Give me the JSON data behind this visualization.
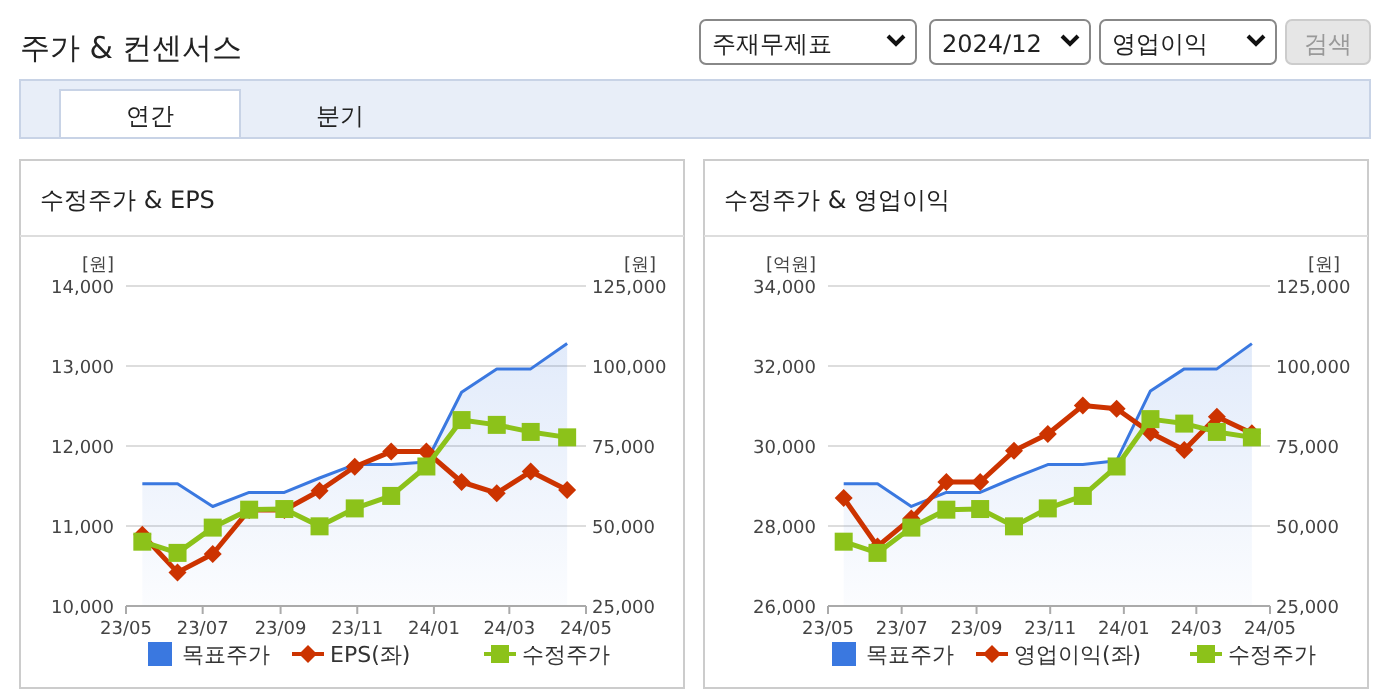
{
  "chart_data": [
    {
      "type": "other",
      "title": "주가 & 컨센서스",
      "annotations": [
        "주재무제표",
        "2024/12",
        "영업이익",
        "검색",
        "연간",
        "분기"
      ]
    },
    {
      "type": "line",
      "title": "수정주가 & EPS",
      "ylabel": "[원]",
      "y2label": "[원]",
      "x": [
        "2023-05-14",
        "2023-06-11",
        "2023-07-09",
        "2023-08-07",
        "2023-09-04",
        "2023-10-02",
        "2023-10-30",
        "2023-11-28",
        "2023-12-26",
        "2024-01-23",
        "2024-02-20",
        "2024-03-18",
        "2024-04-16"
      ],
      "xlim": [
        "2023-05",
        "2024-05"
      ],
      "xticks": [
        {
          "value": "2023-05",
          "label": "23/05"
        },
        {
          "value": "2023-07",
          "label": "23/07"
        },
        {
          "value": "2023-09",
          "label": "23/09"
        },
        {
          "value": "2023-11",
          "label": "23/11"
        },
        {
          "value": "2024-01",
          "label": "24/01"
        },
        {
          "value": "2024-03",
          "label": "24/03"
        },
        {
          "value": "2024-05",
          "label": "24/05"
        }
      ],
      "ylim": [
        10000,
        14000
      ],
      "yticks": [
        {
          "value": 10000,
          "label": "10,000"
        },
        {
          "value": 11000,
          "label": "11,000"
        },
        {
          "value": 12000,
          "label": "12,000"
        },
        {
          "value": 13000,
          "label": "13,000"
        },
        {
          "value": 14000,
          "label": "14,000"
        }
      ],
      "y2lim": [
        25000,
        125000
      ],
      "y2ticks": [
        {
          "value": 25000,
          "label": "25,000"
        },
        {
          "value": 50000,
          "label": "50,000"
        },
        {
          "value": 75000,
          "label": "75,000"
        },
        {
          "value": 100000,
          "label": "100,000"
        },
        {
          "value": 125000,
          "label": "125,000"
        }
      ],
      "grid": "y",
      "legend": "bottom",
      "series": [
        {
          "name": "목표주가",
          "type": "area",
          "axis": "y2",
          "color": "#3a78e0",
          "marker": "none",
          "values": [
            63200,
            63200,
            56100,
            60500,
            60500,
            65000,
            69200,
            69200,
            70000,
            91800,
            99100,
            99100,
            107000
          ]
        },
        {
          "name": "EPS(좌)",
          "type": "line",
          "color": "#cc3300",
          "marker": "diamond",
          "values": [
            10890,
            10420,
            10650,
            11200,
            11200,
            11440,
            11740,
            11930,
            11930,
            11550,
            11410,
            11680,
            11450
          ]
        },
        {
          "name": "수정주가",
          "type": "line",
          "axis": "y2",
          "color": "#8cc21a",
          "marker": "square",
          "values": [
            45100,
            41600,
            49500,
            55100,
            55300,
            49900,
            55500,
            59400,
            68600,
            83100,
            81600,
            79400,
            77700
          ]
        }
      ]
    },
    {
      "type": "line",
      "title": "수정주가 & 영업이익",
      "ylabel": "[억원]",
      "y2label": "[원]",
      "x": [
        "2023-05-14",
        "2023-06-11",
        "2023-07-09",
        "2023-08-07",
        "2023-09-04",
        "2023-10-02",
        "2023-10-30",
        "2023-11-28",
        "2023-12-26",
        "2024-01-23",
        "2024-02-20",
        "2024-03-18",
        "2024-04-16"
      ],
      "xlim": [
        "2023-05",
        "2024-05"
      ],
      "xticks": [
        {
          "value": "2023-05",
          "label": "23/05"
        },
        {
          "value": "2023-07",
          "label": "23/07"
        },
        {
          "value": "2023-09",
          "label": "23/09"
        },
        {
          "value": "2023-11",
          "label": "23/11"
        },
        {
          "value": "2024-01",
          "label": "24/01"
        },
        {
          "value": "2024-03",
          "label": "24/03"
        },
        {
          "value": "2024-05",
          "label": "24/05"
        }
      ],
      "ylim": [
        26000,
        34000
      ],
      "yticks": [
        {
          "value": 26000,
          "label": "26,000"
        },
        {
          "value": 28000,
          "label": "28,000"
        },
        {
          "value": 30000,
          "label": "30,000"
        },
        {
          "value": 32000,
          "label": "32,000"
        },
        {
          "value": 34000,
          "label": "34,000"
        }
      ],
      "y2lim": [
        25000,
        125000
      ],
      "y2ticks": [
        {
          "value": 25000,
          "label": "25,000"
        },
        {
          "value": 50000,
          "label": "50,000"
        },
        {
          "value": 75000,
          "label": "75,000"
        },
        {
          "value": 100000,
          "label": "100,000"
        },
        {
          "value": 125000,
          "label": "125,000"
        }
      ],
      "grid": "y",
      "legend": "bottom",
      "series": [
        {
          "name": "목표주가",
          "type": "area",
          "axis": "y2",
          "color": "#3a78e0",
          "marker": "none",
          "values": [
            63200,
            63200,
            56100,
            60500,
            60500,
            65000,
            69200,
            69200,
            70400,
            92200,
            99100,
            99100,
            107000
          ]
        },
        {
          "name": "영업이익(좌)",
          "type": "line",
          "color": "#cc3300",
          "marker": "diamond",
          "values": [
            28700,
            27490,
            28190,
            29100,
            29100,
            29880,
            30300,
            31010,
            30930,
            30330,
            29900,
            30730,
            30320
          ]
        },
        {
          "name": "수정주가",
          "type": "line",
          "axis": "y2",
          "color": "#8cc21a",
          "marker": "square",
          "values": [
            45100,
            41600,
            49500,
            55100,
            55300,
            49900,
            55500,
            59400,
            68600,
            83400,
            82000,
            79400,
            77700
          ]
        }
      ]
    }
  ]
}
